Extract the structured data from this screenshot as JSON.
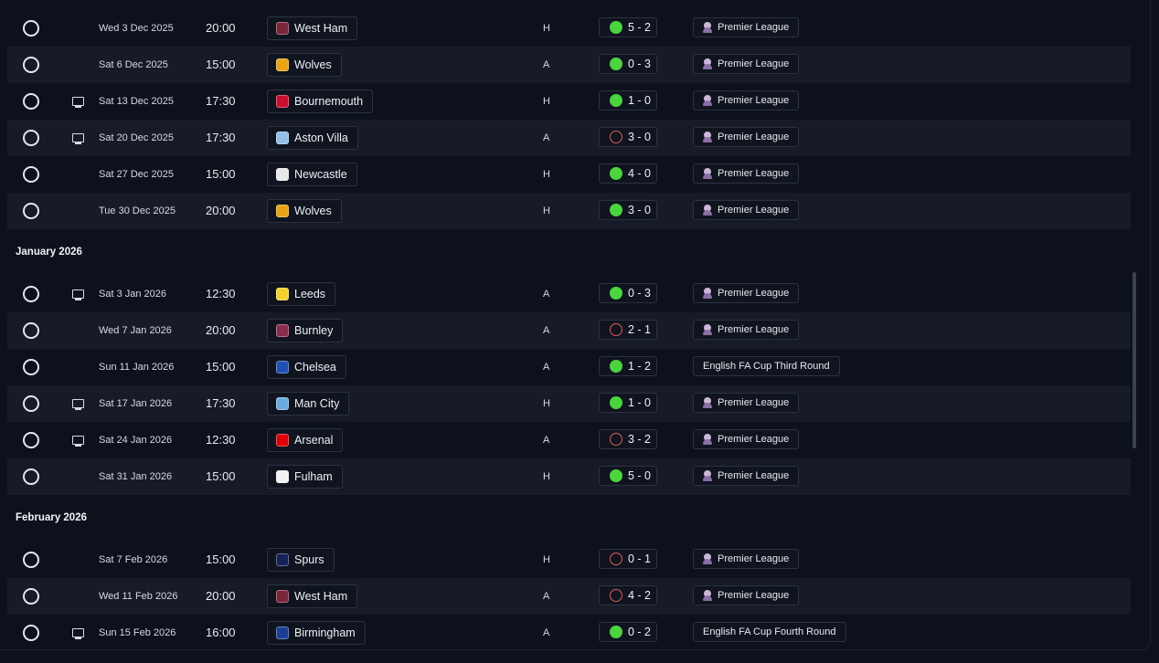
{
  "months": [
    {
      "label": "",
      "fixtures": [
        {
          "date": "Wed 3 Dec 2025",
          "time": "20:00",
          "team": "West Ham",
          "crest": "#7a263a",
          "venue": "H",
          "result": "5 - 2",
          "outcome": "win",
          "competition": "Premier League",
          "tv": false,
          "pl": true
        },
        {
          "date": "Sat 6 Dec 2025",
          "time": "15:00",
          "team": "Wolves",
          "crest": "#e8a317",
          "venue": "A",
          "result": "0 - 3",
          "outcome": "win",
          "competition": "Premier League",
          "tv": false,
          "pl": true
        },
        {
          "date": "Sat 13 Dec 2025",
          "time": "17:30",
          "team": "Bournemouth",
          "crest": "#c8102e",
          "venue": "H",
          "result": "1 - 0",
          "outcome": "win",
          "competition": "Premier League",
          "tv": true,
          "pl": true
        },
        {
          "date": "Sat 20 Dec 2025",
          "time": "17:30",
          "team": "Aston Villa",
          "crest": "#95bfe5",
          "venue": "A",
          "result": "3 - 0",
          "outcome": "loss",
          "competition": "Premier League",
          "tv": true,
          "pl": true
        },
        {
          "date": "Sat 27 Dec 2025",
          "time": "15:00",
          "team": "Newcastle",
          "crest": "#e8e8e8",
          "venue": "H",
          "result": "4 - 0",
          "outcome": "win",
          "competition": "Premier League",
          "tv": false,
          "pl": true
        },
        {
          "date": "Tue 30 Dec 2025",
          "time": "20:00",
          "team": "Wolves",
          "crest": "#e8a317",
          "venue": "H",
          "result": "3 - 0",
          "outcome": "win",
          "competition": "Premier League",
          "tv": false,
          "pl": true
        }
      ]
    },
    {
      "label": "January 2026",
      "fixtures": [
        {
          "date": "Sat 3 Jan 2026",
          "time": "12:30",
          "team": "Leeds",
          "crest": "#f5d130",
          "venue": "A",
          "result": "0 - 3",
          "outcome": "win",
          "competition": "Premier League",
          "tv": true,
          "pl": true
        },
        {
          "date": "Wed 7 Jan 2026",
          "time": "20:00",
          "team": "Burnley",
          "crest": "#8a2c4f",
          "venue": "A",
          "result": "2 - 1",
          "outcome": "loss",
          "competition": "Premier League",
          "tv": false,
          "pl": true
        },
        {
          "date": "Sun 11 Jan 2026",
          "time": "15:00",
          "team": "Chelsea",
          "crest": "#1f4fb0",
          "venue": "A",
          "result": "1 - 2",
          "outcome": "win",
          "competition": "English FA Cup Third Round",
          "tv": false,
          "pl": false
        },
        {
          "date": "Sat 17 Jan 2026",
          "time": "17:30",
          "team": "Man City",
          "crest": "#6cabdd",
          "venue": "H",
          "result": "1 - 0",
          "outcome": "win",
          "competition": "Premier League",
          "tv": true,
          "pl": true
        },
        {
          "date": "Sat 24 Jan 2026",
          "time": "12:30",
          "team": "Arsenal",
          "crest": "#db0007",
          "venue": "A",
          "result": "3 - 2",
          "outcome": "loss",
          "competition": "Premier League",
          "tv": true,
          "pl": true
        },
        {
          "date": "Sat 31 Jan 2026",
          "time": "15:00",
          "team": "Fulham",
          "crest": "#f2f2f2",
          "venue": "H",
          "result": "5 - 0",
          "outcome": "win",
          "competition": "Premier League",
          "tv": false,
          "pl": true
        }
      ]
    },
    {
      "label": "February 2026",
      "fixtures": [
        {
          "date": "Sat 7 Feb 2026",
          "time": "15:00",
          "team": "Spurs",
          "crest": "#132257",
          "venue": "H",
          "result": "0 - 1",
          "outcome": "loss",
          "competition": "Premier League",
          "tv": false,
          "pl": true
        },
        {
          "date": "Wed 11 Feb 2026",
          "time": "20:00",
          "team": "West Ham",
          "crest": "#7a263a",
          "venue": "A",
          "result": "4 - 2",
          "outcome": "loss",
          "competition": "Premier League",
          "tv": false,
          "pl": true
        },
        {
          "date": "Sun 15 Feb 2026",
          "time": "16:00",
          "team": "Birmingham",
          "crest": "#1c3f94",
          "venue": "A",
          "result": "0 - 2",
          "outcome": "win",
          "competition": "English FA Cup Fourth Round",
          "tv": true,
          "pl": false
        }
      ]
    }
  ]
}
